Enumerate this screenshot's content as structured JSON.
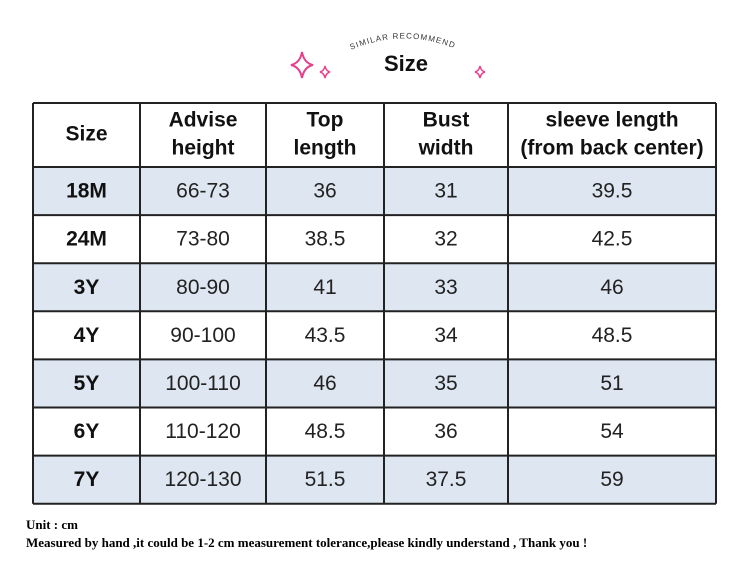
{
  "header": {
    "arc_text": "SIMILAR RECOMMEND",
    "title": "Size"
  },
  "table": {
    "columns": [
      [
        "Size"
      ],
      [
        "Advise",
        "height"
      ],
      [
        "Top",
        "length"
      ],
      [
        "Bust",
        "width"
      ],
      [
        "sleeve length",
        "(from back center)"
      ]
    ],
    "rows": [
      [
        "18M",
        "66-73",
        "36",
        "31",
        "39.5"
      ],
      [
        "24M",
        "73-80",
        "38.5",
        "32",
        "42.5"
      ],
      [
        "3Y",
        "80-90",
        "41",
        "33",
        "46"
      ],
      [
        "4Y",
        "90-100",
        "43.5",
        "34",
        "48.5"
      ],
      [
        "5Y",
        "100-110",
        "46",
        "35",
        "51"
      ],
      [
        "6Y",
        "110-120",
        "48.5",
        "36",
        "54"
      ],
      [
        "7Y",
        "120-130",
        "51.5",
        "37.5",
        "59"
      ]
    ]
  },
  "footer": {
    "unit": "Unit : cm",
    "note": "Measured by hand ,it could be 1-2 cm measurement tolerance,please kindly understand , Thank you !"
  }
}
